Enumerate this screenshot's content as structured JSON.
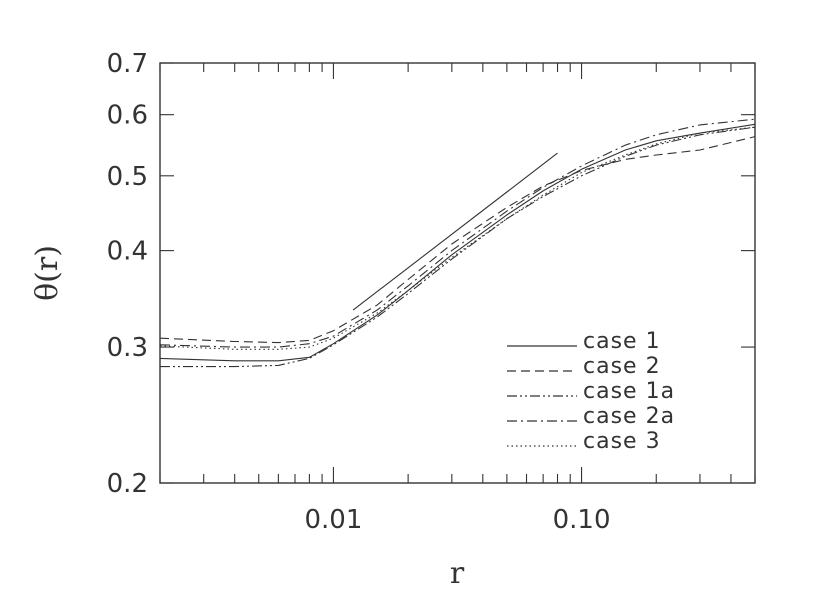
{
  "chart_data": {
    "type": "line",
    "title": "",
    "xlabel": "r",
    "ylabel": "θ(r)",
    "xscale": "log",
    "yscale": "log",
    "xlim": [
      0.002,
      0.5
    ],
    "ylim": [
      0.2,
      0.7
    ],
    "x_ticks": [
      {
        "value": 0.01,
        "label": "0.01"
      },
      {
        "value": 0.1,
        "label": "0.10"
      }
    ],
    "y_ticks": [
      {
        "value": 0.2,
        "label": "0.2"
      },
      {
        "value": 0.3,
        "label": "0.3"
      },
      {
        "value": 0.4,
        "label": "0.4"
      },
      {
        "value": 0.5,
        "label": "0.5"
      },
      {
        "value": 0.6,
        "label": "0.6"
      },
      {
        "value": 0.7,
        "label": "0.7"
      }
    ],
    "grid": false,
    "legend_position": "lower-right",
    "color": "#333333",
    "series": [
      {
        "name": "case 1",
        "dash": "solid",
        "x": [
          0.002,
          0.004,
          0.006,
          0.008,
          0.01,
          0.015,
          0.02,
          0.03,
          0.05,
          0.07,
          0.1,
          0.15,
          0.2,
          0.3,
          0.5
        ],
        "y": [
          0.29,
          0.288,
          0.288,
          0.291,
          0.303,
          0.33,
          0.355,
          0.395,
          0.445,
          0.478,
          0.51,
          0.54,
          0.555,
          0.568,
          0.583
        ]
      },
      {
        "name": "case 2",
        "dash": "dashed",
        "x": [
          0.002,
          0.004,
          0.006,
          0.008,
          0.01,
          0.015,
          0.02,
          0.03,
          0.05,
          0.07,
          0.1,
          0.15,
          0.2,
          0.3,
          0.5
        ],
        "y": [
          0.308,
          0.305,
          0.304,
          0.306,
          0.315,
          0.34,
          0.367,
          0.408,
          0.455,
          0.485,
          0.508,
          0.525,
          0.532,
          0.54,
          0.562
        ]
      },
      {
        "name": "case 1a",
        "dash": "dash-dot-dot",
        "x": [
          0.002,
          0.004,
          0.006,
          0.008,
          0.01,
          0.015,
          0.02,
          0.03,
          0.05,
          0.07,
          0.1,
          0.15,
          0.2,
          0.3,
          0.5
        ],
        "y": [
          0.283,
          0.283,
          0.284,
          0.29,
          0.302,
          0.328,
          0.352,
          0.39,
          0.44,
          0.47,
          0.5,
          0.53,
          0.548,
          0.565,
          0.578
        ]
      },
      {
        "name": "case 2a",
        "dash": "dash-dot",
        "x": [
          0.002,
          0.004,
          0.006,
          0.008,
          0.01,
          0.015,
          0.02,
          0.03,
          0.05,
          0.07,
          0.1,
          0.15,
          0.2,
          0.3,
          0.5
        ],
        "y": [
          0.302,
          0.3,
          0.3,
          0.303,
          0.31,
          0.335,
          0.36,
          0.4,
          0.45,
          0.483,
          0.515,
          0.548,
          0.565,
          0.582,
          0.592
        ]
      },
      {
        "name": "case 3",
        "dash": "dotted",
        "x": [
          0.002,
          0.004,
          0.006,
          0.008,
          0.01,
          0.015,
          0.02,
          0.03,
          0.05,
          0.07,
          0.1,
          0.15,
          0.2,
          0.3,
          0.5
        ],
        "y": [
          0.301,
          0.298,
          0.298,
          0.3,
          0.308,
          0.332,
          0.355,
          0.392,
          0.44,
          0.472,
          0.505,
          0.532,
          0.55,
          0.568,
          0.578
        ]
      }
    ],
    "reference_line": {
      "x": [
        0.012,
        0.08
      ],
      "y": [
        0.335,
        0.535
      ]
    }
  }
}
